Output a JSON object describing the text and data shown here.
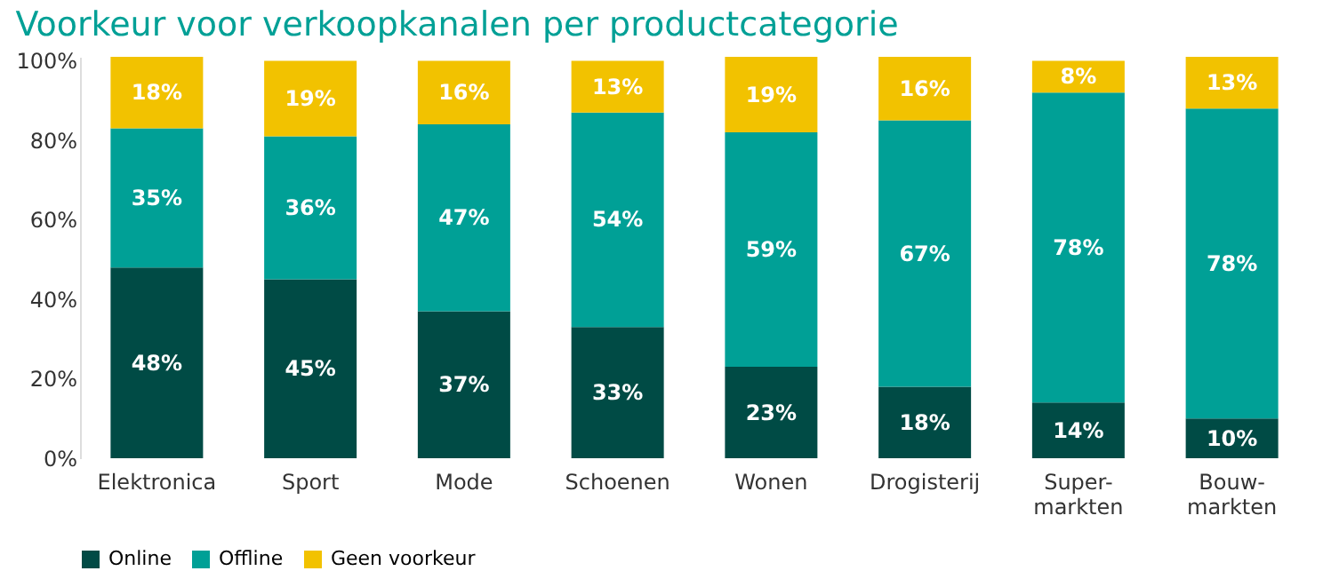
{
  "chart_data": {
    "type": "bar",
    "stacked": true,
    "title": "Voorkeur voor verkoopkanalen per productcategorie",
    "categories": [
      "Elektronica",
      "Sport",
      "Mode",
      "Schoenen",
      "Wonen",
      "Drogisterij",
      "Super-\nmarkten",
      "Bouw-\nmarkten"
    ],
    "series": [
      {
        "name": "Online",
        "color": "#004b45",
        "values": [
          48,
          45,
          37,
          33,
          23,
          18,
          14,
          10
        ],
        "value_labels": [
          "48%",
          "45%",
          "37%",
          "33%",
          "23%",
          "18%",
          "14%",
          "10%"
        ]
      },
      {
        "name": "Offline",
        "color": "#00a096",
        "values": [
          35,
          36,
          47,
          54,
          59,
          67,
          78,
          78
        ],
        "value_labels": [
          "35%",
          "36%",
          "47%",
          "54%",
          "59%",
          "67%",
          "78%",
          "78%"
        ]
      },
      {
        "name": "Geen voorkeur",
        "color": "#f2c200",
        "values": [
          18,
          19,
          16,
          13,
          19,
          16,
          8,
          13
        ],
        "value_labels": [
          "18%",
          "19%",
          "16%",
          "13%",
          "19%",
          "16%",
          "8%",
          "13%"
        ]
      }
    ],
    "ylim": [
      0,
      101
    ],
    "yticks": [
      {
        "value": 0,
        "label": "0%"
      },
      {
        "value": 20,
        "label": "20%"
      },
      {
        "value": 40,
        "label": "40%"
      },
      {
        "value": 60,
        "label": "60%"
      },
      {
        "value": 80,
        "label": "80%"
      },
      {
        "value": 100,
        "label": "100%"
      }
    ],
    "grid": false,
    "legend": "bottom"
  }
}
